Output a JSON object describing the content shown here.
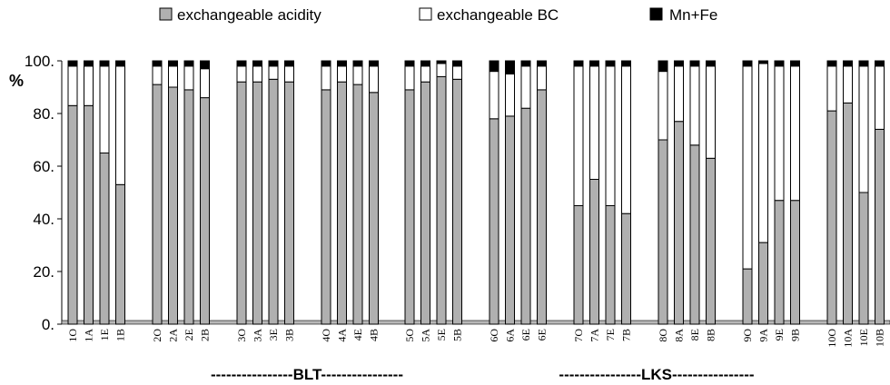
{
  "chart_data": {
    "type": "bar",
    "stacked": true,
    "ylabel": "%",
    "ylim": [
      0,
      100
    ],
    "yticks": [
      "0.",
      "20.",
      "40.",
      "60.",
      "80.",
      "100."
    ],
    "legend": {
      "placement": "top",
      "entries": [
        "exchangeable acidity",
        "exchangeable BC",
        "Mn+Fe"
      ]
    },
    "series_colors": [
      "#b0b0b0",
      "#ffffff",
      "#000000"
    ],
    "groups": [
      {
        "label": "----------------BLT----------------",
        "from": 0,
        "to": 19
      },
      {
        "label": "----------------LKS----------------",
        "from": 20,
        "to": 39
      }
    ],
    "categories": [
      "1O",
      "1A",
      "1E",
      "1B",
      "2O",
      "2A",
      "2E",
      "2B",
      "3O",
      "3A",
      "3E",
      "3B",
      "4O",
      "4A",
      "4E",
      "4B",
      "5O",
      "5A",
      "5E",
      "5B",
      "6O",
      "6A",
      "6E",
      "6E",
      "7O",
      "7A",
      "7E",
      "7B",
      "8O",
      "8A",
      "8E",
      "8B",
      "9O",
      "9A",
      "9E",
      "9B",
      "10O",
      "10A",
      "10E",
      "10B"
    ],
    "series": [
      {
        "name": "exchangeable acidity",
        "values": [
          83,
          83,
          65,
          53,
          91,
          90,
          89,
          86,
          92,
          92,
          93,
          92,
          89,
          92,
          91,
          88,
          89,
          92,
          94,
          93,
          78,
          79,
          82,
          89,
          45,
          55,
          45,
          42,
          70,
          77,
          68,
          63,
          21,
          31,
          47,
          47,
          81,
          84,
          50,
          74
        ]
      },
      {
        "name": "exchangeable BC",
        "values": [
          15,
          15,
          33,
          45,
          7,
          8,
          9,
          11,
          6,
          6,
          5,
          6,
          9,
          6,
          7,
          10,
          9,
          6,
          5,
          5,
          18,
          16,
          16,
          9,
          53,
          43,
          53,
          56,
          26,
          21,
          30,
          35,
          77,
          68,
          51,
          51,
          17,
          14,
          48,
          24
        ]
      },
      {
        "name": "Mn+Fe",
        "values": [
          2,
          2,
          2,
          2,
          2,
          2,
          2,
          3,
          2,
          2,
          2,
          2,
          2,
          2,
          2,
          2,
          2,
          2,
          1,
          2,
          4,
          5,
          2,
          2,
          2,
          2,
          2,
          2,
          4,
          2,
          2,
          2,
          2,
          1,
          2,
          2,
          2,
          2,
          2,
          2
        ]
      }
    ]
  }
}
